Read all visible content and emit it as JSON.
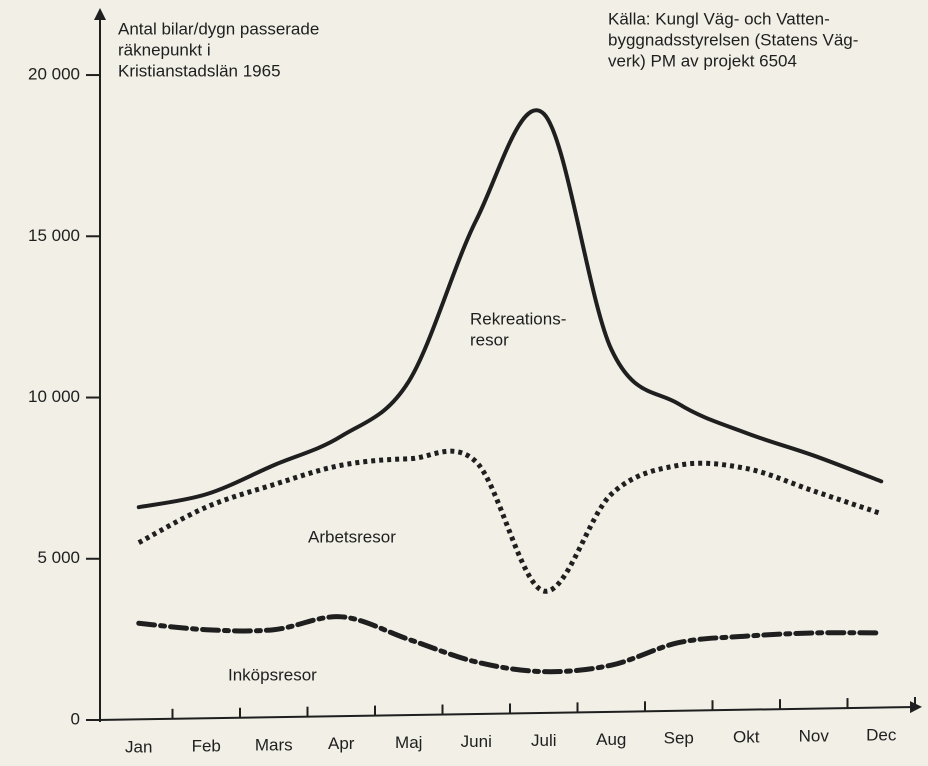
{
  "chart_data": {
    "type": "line",
    "title": [
      "Antal bilar/dygn passerade",
      "räknepunkt i",
      "Kristianstadslän 1965"
    ],
    "source": [
      "Källa: Kungl Väg- och Vatten-",
      "byggnadsstyrelsen (Statens Väg-",
      "verk) PM av projekt 6504"
    ],
    "categories": [
      "Jan",
      "Feb",
      "Mars",
      "Apr",
      "Maj",
      "Juni",
      "Juli",
      "Aug",
      "Sep",
      "Okt",
      "Nov",
      "Dec"
    ],
    "ylim": [
      0,
      21800
    ],
    "yticks": [
      0,
      {
        "value": 5000,
        "label": "5 000"
      },
      {
        "value": 10000,
        "label": "10 000"
      },
      {
        "value": 15000,
        "label": "15 000"
      },
      {
        "value": 20000,
        "label": "20 000"
      }
    ],
    "grid": false,
    "series": [
      {
        "name": [
          "Rekreations-",
          "resor"
        ],
        "color": "#1f1f1f",
        "style": "solid",
        "values": [
          6600,
          7000,
          7900,
          8800,
          10500,
          15500,
          18800,
          11500,
          9800,
          8900,
          8200,
          7400
        ]
      },
      {
        "name": [
          "Arbetsresor"
        ],
        "color": "#1f1f1f",
        "style": "dotted",
        "values": [
          5500,
          6600,
          7300,
          7900,
          8100,
          8000,
          4000,
          7000,
          7900,
          7800,
          7100,
          6400
        ]
      },
      {
        "name": [
          "Inköpsresor"
        ],
        "color": "#1f1f1f",
        "style": "dashdot",
        "values": [
          3000,
          2800,
          2800,
          3200,
          2500,
          1800,
          1500,
          1700,
          2400,
          2600,
          2700,
          2700
        ]
      }
    ]
  }
}
